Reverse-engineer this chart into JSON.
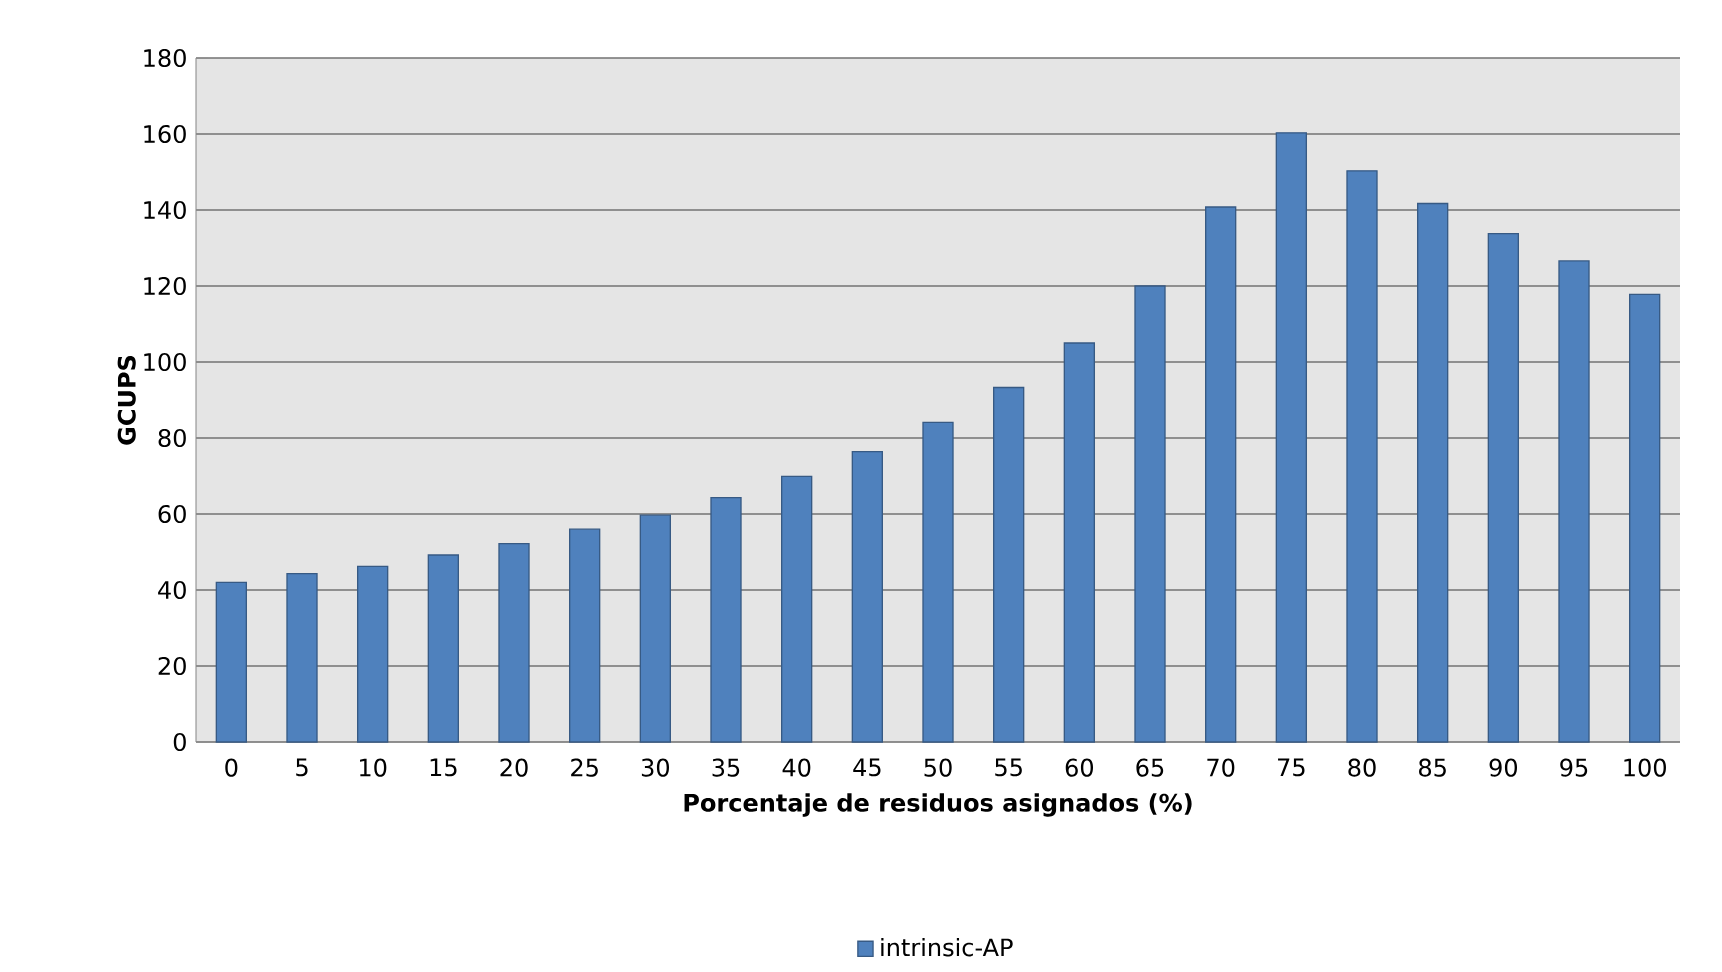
{
  "chart_data": {
    "type": "bar",
    "xlabel": "Porcentaje de residuos asignados (%)",
    "ylabel": "GCUPS",
    "categories": [
      "0",
      "5",
      "10",
      "15",
      "20",
      "25",
      "30",
      "35",
      "40",
      "45",
      "50",
      "55",
      "60",
      "65",
      "70",
      "75",
      "80",
      "85",
      "90",
      "95",
      "100"
    ],
    "series": [
      {
        "name": "intrinsic-AP",
        "color": "#4f81bd",
        "values": [
          42,
          44.3,
          46.2,
          49.2,
          52.2,
          56,
          59.7,
          64.3,
          69.9,
          76.4,
          84.1,
          93.3,
          105,
          120,
          140.8,
          160.3,
          150.3,
          141.7,
          133.8,
          126.6,
          117.8
        ]
      }
    ],
    "ylim": [
      0,
      180
    ],
    "yticks": [
      0,
      20,
      40,
      60,
      80,
      100,
      120,
      140,
      160,
      180
    ],
    "grid": "y",
    "legend": "bottom"
  }
}
